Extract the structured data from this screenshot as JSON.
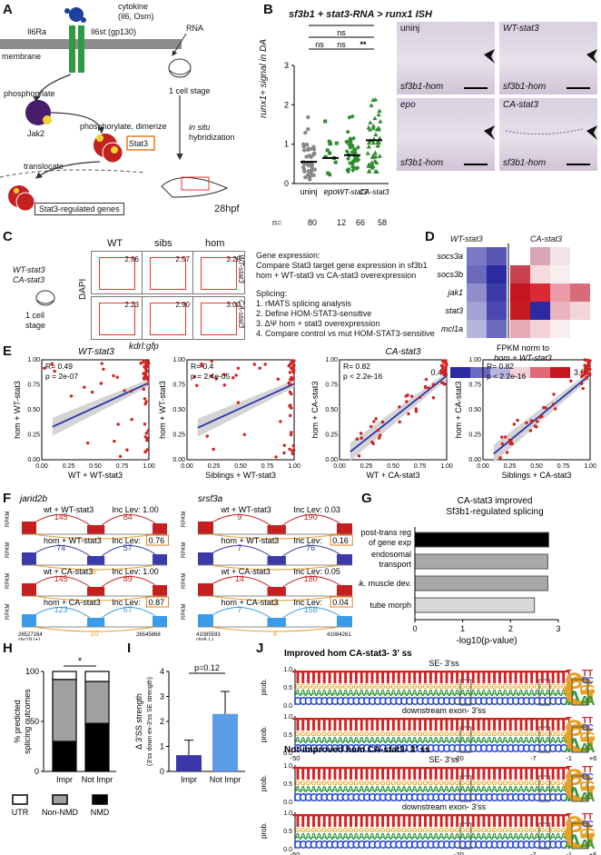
{
  "panels": {
    "A": "A",
    "B": "B",
    "C": "C",
    "D": "D",
    "E": "E",
    "F": "F",
    "G": "G",
    "H": "H",
    "I": "I",
    "J": "J"
  },
  "panelA": {
    "cytokine": "cytokine",
    "cytokine_sub": "(Il6, Osm)",
    "il6ra": "Il6Ra",
    "il6st": "Il6st (gp130)",
    "membrane": "membrane",
    "phosphorylate": "phosphorylate",
    "jak2": "Jak2",
    "phos_dimerize": "phosphorylate, dimerize",
    "stat3": "Stat3",
    "translocate": "translocate",
    "genes": "Stat3-regulated genes",
    "rna": "RNA",
    "one_cell": "1 cell stage",
    "insitu1": "in situ",
    "insitu2": "hybridization",
    "hpf": "28hpf"
  },
  "panelB": {
    "title": "sf3b1 + stat3-RNA > runx1 ISH",
    "ylabel": "runx1+ signal in DA",
    "sig": [
      "****",
      "ns",
      "ns",
      "ns",
      "**"
    ],
    "n_label": "n=",
    "photos": [
      {
        "title": "uninj",
        "sub": "sf3b1-hom"
      },
      {
        "title": "WT-stat3",
        "sub": "sf3b1-hom"
      },
      {
        "title": "epo",
        "sub": "sf3b1-hom"
      },
      {
        "title": "CA-stat3",
        "sub": "sf3b1-hom"
      }
    ]
  },
  "chart_data": [
    {
      "panel": "B",
      "type": "scatter",
      "categories": [
        "uninj",
        "epo",
        "WT-stat3",
        "CA-stat3"
      ],
      "means": [
        0.55,
        0.65,
        0.72,
        1.1
      ],
      "n": [
        80,
        12,
        66,
        58
      ],
      "colors": [
        "#888888",
        "#2e8b2e",
        "#2e8b2e",
        "#2e8b2e"
      ],
      "ylabel": "runx1+ signal in DA",
      "ylim": [
        0,
        3
      ],
      "yticks": [
        0,
        1,
        2,
        3
      ]
    },
    {
      "panel": "E",
      "type": "scatter",
      "plots": [
        {
          "group": "WT-stat3",
          "r": "R= 0.49",
          "p": "p = 2e-07",
          "xlabel": "WT + WT-stat3",
          "ylabel": "hom + WT-stat3",
          "fit": [
            0.1,
            0.33,
            1.0,
            0.77
          ]
        },
        {
          "group": "",
          "r": "R= 0.4",
          "p": "p = 2.4e-05",
          "xlabel": "Siblings + WT-stat3",
          "ylabel": "hom + WT-stat3",
          "fit": [
            0.1,
            0.32,
            1.0,
            0.76
          ]
        },
        {
          "group": "CA-stat3",
          "r": "R= 0.82",
          "p": "p < 2.2e-16",
          "xlabel": "WT + CA-stat3",
          "ylabel": "hom + CA-stat3",
          "fit": [
            0.1,
            0.08,
            1.0,
            0.84
          ]
        },
        {
          "group": "",
          "r": "R= 0.82",
          "p": "p < 2.2e-16",
          "xlabel": "Siblings + CA-stat3",
          "ylabel": "hom + CA-stat3",
          "fit": [
            0.1,
            0.06,
            1.0,
            0.85
          ]
        }
      ],
      "ticks": [
        "0.00",
        "0.25",
        "0.50",
        "0.75",
        "1.00"
      ]
    },
    {
      "panel": "G",
      "type": "bar",
      "title": "CA-stat3 improved Sf3b1-regulated splicing",
      "categories": [
        "post-trans reg of gene exp",
        "endosomal transport",
        "sk. muscle dev.",
        "tube morph"
      ],
      "values": [
        2.8,
        2.78,
        2.78,
        2.5
      ],
      "colors": [
        "#000000",
        "#a8a8a8",
        "#a8a8a8",
        "#d8d8d8"
      ],
      "xlabel": "-log10(p-value)",
      "xlim": [
        0,
        3
      ],
      "xticks": [
        "0",
        "1",
        "2",
        "3"
      ]
    },
    {
      "panel": "H",
      "type": "bar",
      "categories": [
        "Impr",
        "Not Impr"
      ],
      "stack": [
        {
          "name": "NMD",
          "values": [
            30,
            48
          ]
        },
        {
          "name": "Non-NMD",
          "values": [
            62,
            42
          ]
        },
        {
          "name": "UTR",
          "values": [
            8,
            10
          ]
        }
      ],
      "ylabel": "% predicted splicing outcomes",
      "yticks": [
        "0",
        "50",
        "100"
      ],
      "sig": "*"
    },
    {
      "panel": "I",
      "type": "bar",
      "categories": [
        "Impr",
        "Not Impr"
      ],
      "values": [
        0.65,
        2.3
      ],
      "err": [
        0.6,
        0.9
      ],
      "ylabel": "Δ 3'SS strength",
      "ylabel2": "(3'ss down ex-3'ss SE strength)",
      "yticks": [
        "0",
        "1",
        "2",
        "3",
        "4"
      ],
      "p": "p=0.12"
    }
  ],
  "panelC": {
    "wt_stat3": "WT-stat3",
    "ca_stat3": "CA-stat3",
    "one_cell": "1 cell",
    "stage": "stage",
    "cols": [
      "WT",
      "sibs",
      "hom"
    ],
    "row_labels": [
      "WT-stat3",
      "CA-stat3"
    ],
    "values": [
      [
        "2.66",
        "2.57",
        "3.28"
      ],
      [
        "2.23",
        "2.90",
        "3.00"
      ]
    ],
    "ylab": "DAPI",
    "xlab": "kdrl:gfp",
    "gene_title": "Gene expression:",
    "gene_text1": "Compare Stat3 target gene expression in sf3b1",
    "gene_text2": "hom + WT-stat3 vs CA-stat3 overexpression",
    "splicing_title": "Splicing:",
    "steps": [
      "1. rMATS splicing analysis",
      "2. Define HOM-STAT3-sensitive",
      "3. ΔΨ hom + stat3 overexpression",
      "4. Compare control vs mut HOM-STAT3-sensitive"
    ]
  },
  "panelD": {
    "col1": "WT-stat3",
    "col2": "CA-stat3",
    "genes": [
      "socs3a",
      "socs3b",
      "jak1",
      "stat3",
      "mcl1a"
    ],
    "caption1": "FPKM norm to",
    "caption2": "hom + WT-stat3",
    "min": "0.48",
    "max": "3.97",
    "matrix": [
      [
        "#7b78c4",
        "#5956b4",
        "#ffffff",
        "#d7a5b6",
        "#f4e3e6",
        "#ffffff"
      ],
      [
        "#6b69bd",
        "#2b2aa0",
        "#c9404f",
        "#f5dade",
        "#f7eef0",
        "#ffffff"
      ],
      [
        "#8f8dcc",
        "#3b3aa7",
        "#c41620",
        "#d92b33",
        "#e89aa6",
        "#d86b7a"
      ],
      [
        "#a3a2d6",
        "#4b49af",
        "#c41a22",
        "#2b2aa0",
        "#e8b4c0",
        "#f2d6db"
      ],
      [
        "#b6b5de",
        "#6b69bd",
        "#e7a9b5",
        "#f2d2d8",
        "#f8eef0",
        "#ffffff"
      ]
    ]
  },
  "panelF": {
    "gene1": "jarid2b",
    "gene2": "srsf3a",
    "ylab": "RPKM",
    "rows1": [
      {
        "label": "wt + WT-stat3",
        "inc": "Inc Lev: 1.00",
        "n1": "145",
        "n2": "84",
        "n3": ""
      },
      {
        "label": "hom + WT-stat3",
        "inc": "Inc Lev:",
        "incval": "0.76",
        "n1": "74",
        "n2": "57",
        "n3": "6"
      },
      {
        "label": "wt + CA-stat3",
        "inc": "Inc Lev: 1.00",
        "n1": "145",
        "n2": "89",
        "n3": ""
      },
      {
        "label": "hom + CA-stat3",
        "inc": "Inc Lev:",
        "incval": "0.87",
        "n1": "123",
        "n2": "67",
        "n3": "10"
      }
    ],
    "rows2": [
      {
        "label": "wt + WT-stat3",
        "inc": "Inc Lev: 0.03",
        "n1": "9",
        "n2": "190",
        "n3": "2"
      },
      {
        "label": "hom + WT-stat3",
        "inc": "Inc Lev:",
        "incval": "0.16",
        "n1": "7",
        "n2": "76",
        "n3": ""
      },
      {
        "label": "wt + CA-stat3",
        "inc": "Inc Lev: 0.05",
        "n1": "14",
        "n2": "180",
        "n3": "14"
      },
      {
        "label": "hom + CA-stat3",
        "inc": "Inc Lev:",
        "incval": "0.04",
        "n1": "7",
        "n2": "158",
        "n3": "4"
      }
    ],
    "coord1a": "26527164",
    "coord1b": "26545868",
    "chr1": "chr19 (+)",
    "coord2a": "41085593",
    "coord2b": "41084261",
    "chr2": "chr6 (-)"
  },
  "panelH": {
    "legend": [
      "UTR",
      "Non-NMD",
      "NMD"
    ]
  },
  "panelJ": {
    "title1": "Improved hom CA-stat3- 3' ss",
    "title2": "Not-improved hom CA-stat3- 3' ss",
    "sub_se": "SE- 3'ss",
    "sub_ds": "downstream exon- 3'ss",
    "ylab": "prob.",
    "yticks": [
      "0.0",
      "0.5",
      "1.0"
    ],
    "xticks": [
      "-50",
      "-20",
      "-7",
      "-1",
      "+6"
    ]
  }
}
